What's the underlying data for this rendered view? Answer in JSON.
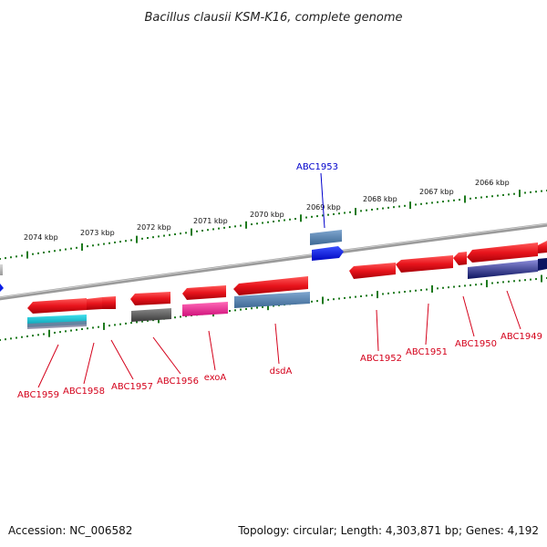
{
  "title": "Bacillus clausii KSM-K16, complete genome",
  "footer": {
    "accession": "Accession: NC_006582",
    "summary": "Topology: circular; Length: 4,303,871 bp; Genes: 4,192"
  },
  "colors": {
    "backbone": "#808080",
    "tick": "#1e7a1e",
    "gene_red": "#e8141c",
    "label_red": "#d4001a",
    "label_blue": "#0000cc",
    "teal": "#00b4c8",
    "steel_blue": "#4f7fb0",
    "magenta": "#f0208c",
    "dark_gray": "#555555",
    "navy": "#102070",
    "bright_blue": "#0a1ee6"
  },
  "kbp_labels": [
    "2074 kbp",
    "2073 kbp",
    "2072 kbp",
    "2071 kbp",
    "2070 kbp",
    "2069 kbp",
    "2068 kbp",
    "2067 kbp",
    "2066 kbp"
  ],
  "gene_labels_bottom": [
    "ABC1959",
    "ABC1958",
    "ABC1957",
    "ABC1956",
    "exoA",
    "dsdA",
    "ABC1952",
    "ABC1951",
    "ABC1950",
    "ABC1949"
  ],
  "gene_label_top": "ABC1953"
}
